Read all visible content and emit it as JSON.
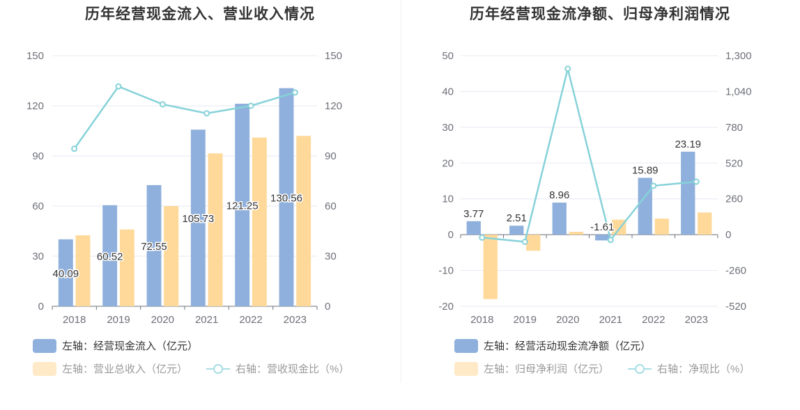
{
  "colors": {
    "bar_primary": "#8fb0dc",
    "bar_secondary": "#ffd99a",
    "line": "#86d2d9",
    "grid": "#e6e9f2",
    "axis": "#6e7079"
  },
  "chart_data": [
    {
      "type": "bar",
      "title": "历年经营现金流入、营业收入情况",
      "categories": [
        "2018",
        "2019",
        "2020",
        "2021",
        "2022",
        "2023"
      ],
      "series": [
        {
          "name": "左轴：经营现金流入（亿元）",
          "axis": "left",
          "type": "bar",
          "values": [
            40.09,
            60.52,
            72.55,
            105.73,
            121.25,
            130.56
          ],
          "labels": [
            "40.09",
            "60.52",
            "72.55",
            "105.73",
            "121.25",
            "130.56"
          ]
        },
        {
          "name": "左轴：营业总收入（亿元）",
          "axis": "left",
          "type": "bar",
          "values": [
            42.5,
            46,
            60,
            91.5,
            101,
            102
          ]
        },
        {
          "name": "右轴：营收现金比（%）",
          "axis": "right",
          "type": "line",
          "values": [
            94.3,
            131.6,
            120.9,
            115.5,
            120,
            128
          ]
        }
      ],
      "left_axis": {
        "ylim": [
          0,
          150
        ],
        "ticks": [
          "0",
          "30",
          "60",
          "90",
          "120",
          "150"
        ]
      },
      "right_axis": {
        "ylim": [
          0,
          150
        ],
        "ticks": [
          "0",
          "30",
          "60",
          "90",
          "120",
          "150"
        ]
      },
      "grid": true,
      "legend_position": "bottom-left"
    },
    {
      "type": "bar",
      "title": "历年经营现金流净额、归母净利润情况",
      "categories": [
        "2018",
        "2019",
        "2020",
        "2021",
        "2022",
        "2023"
      ],
      "series": [
        {
          "name": "左轴：经营活动现金流净额（亿元）",
          "axis": "left",
          "type": "bar",
          "values": [
            3.77,
            2.51,
            8.96,
            -1.61,
            15.89,
            23.19
          ],
          "labels": [
            "3.77",
            "2.51",
            "8.96",
            "-1.61",
            "15.89",
            "23.19"
          ]
        },
        {
          "name": "左轴：归母净利润（亿元）",
          "axis": "left",
          "type": "bar",
          "values": [
            -18,
            -4.5,
            0.8,
            4.2,
            4.5,
            6.2
          ]
        },
        {
          "name": "右轴：净现比（%）",
          "axis": "right",
          "type": "line",
          "values": [
            -21,
            -52,
            1205,
            -38,
            355,
            385
          ]
        }
      ],
      "left_axis": {
        "ylim": [
          -20,
          50
        ],
        "ticks": [
          "-20",
          "-10",
          "0",
          "10",
          "20",
          "30",
          "40",
          "50"
        ]
      },
      "right_axis": {
        "ylim": [
          -520,
          1300
        ],
        "ticks": [
          "-520",
          "-260",
          "0",
          "260",
          "520",
          "780",
          "1,040",
          "1,300"
        ]
      },
      "grid": true,
      "legend_position": "bottom-left"
    }
  ]
}
